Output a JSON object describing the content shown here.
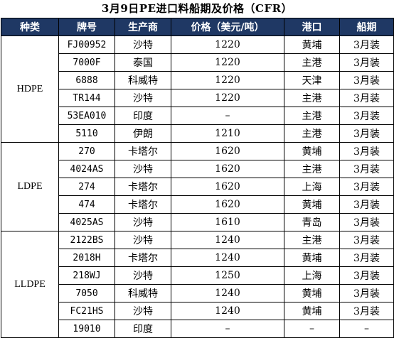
{
  "title": "3月9日PE进口料船期及价格（CFR）",
  "headers": [
    "种类",
    "牌号",
    "生产商",
    "价格（美元/吨）",
    "港口",
    "船期"
  ],
  "groups": [
    {
      "category": "HDPE",
      "rows": [
        {
          "grade": "FJ00952",
          "producer": "沙特",
          "price": "1220",
          "port": "黄埔",
          "shipping": "3月装"
        },
        {
          "grade": "7000F",
          "producer": "泰国",
          "price": "1220",
          "port": "主港",
          "shipping": "3月装"
        },
        {
          "grade": "6888",
          "producer": "科威特",
          "price": "1220",
          "port": "天津",
          "shipping": "3月装"
        },
        {
          "grade": "TR144",
          "producer": "沙特",
          "price": "1220",
          "port": "主港",
          "shipping": "3月装"
        },
        {
          "grade": "53EA010",
          "producer": "印度",
          "price": "–",
          "port": "主港",
          "shipping": "3月装"
        },
        {
          "grade": "5110",
          "producer": "伊朗",
          "price": "1210",
          "port": "主港",
          "shipping": "3月装"
        }
      ]
    },
    {
      "category": "LDPE",
      "rows": [
        {
          "grade": "270",
          "producer": "卡塔尔",
          "price": "1620",
          "port": "黄埔",
          "shipping": "3月装"
        },
        {
          "grade": "4024AS",
          "producer": "沙特",
          "price": "1620",
          "port": "主港",
          "shipping": "3月装"
        },
        {
          "grade": "274",
          "producer": "卡塔尔",
          "price": "1620",
          "port": "上海",
          "shipping": "3月装"
        },
        {
          "grade": "474",
          "producer": "卡塔尔",
          "price": "1620",
          "port": "黄埔",
          "shipping": "3月装"
        },
        {
          "grade": "4025AS",
          "producer": "沙特",
          "price": "1610",
          "port": "青岛",
          "shipping": "3月装"
        }
      ]
    },
    {
      "category": "LLDPE",
      "rows": [
        {
          "grade": "2122BS",
          "producer": "沙特",
          "price": "1240",
          "port": "主港",
          "shipping": "3月装"
        },
        {
          "grade": "2018H",
          "producer": "卡塔尔",
          "price": "1240",
          "port": "黄埔",
          "shipping": "3月装"
        },
        {
          "grade": "218WJ",
          "producer": "沙特",
          "price": "1250",
          "port": "上海",
          "shipping": "3月装"
        },
        {
          "grade": "7050",
          "producer": "科威特",
          "price": "1240",
          "port": "黄埔",
          "shipping": "3月装"
        },
        {
          "grade": "FC21HS",
          "producer": "沙特",
          "price": "1240",
          "port": "黄埔",
          "shipping": "3月装"
        },
        {
          "grade": "19010",
          "producer": "印度",
          "price": "–",
          "port": "–",
          "shipping": "–"
        }
      ]
    }
  ],
  "colors": {
    "header_background": "#1f3864",
    "header_text": "#ffffff",
    "grid_line": "#000000"
  }
}
